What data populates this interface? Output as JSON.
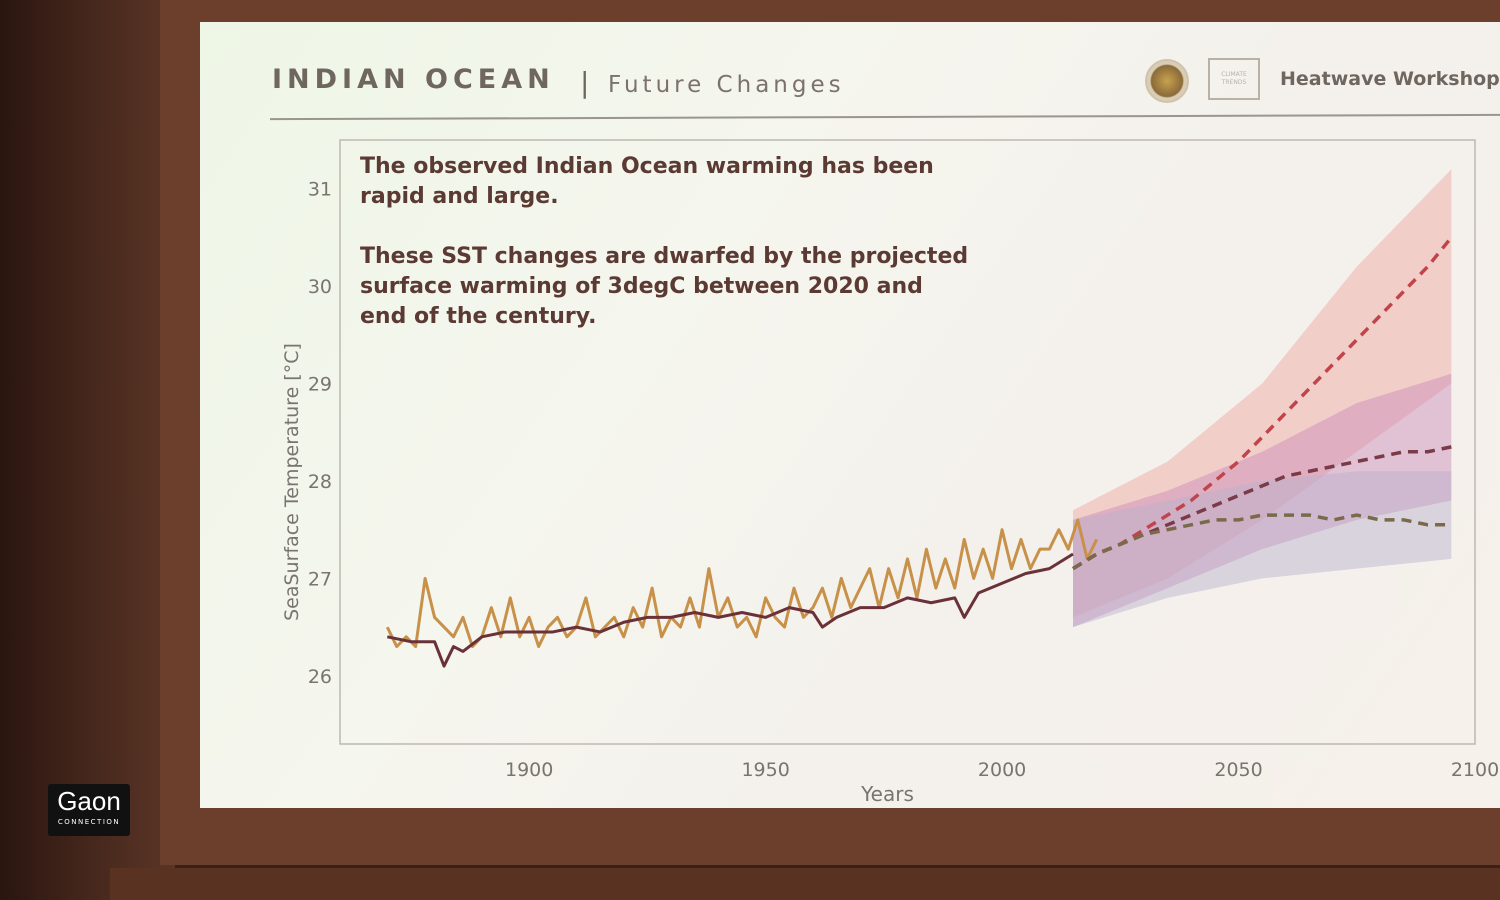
{
  "slide": {
    "title": "INDIAN OCEAN",
    "separator": "|",
    "subtitle": "Future Changes",
    "logo_text": "CLIMATE TRENDS",
    "workshop": "Heatwave Workshop",
    "caption_1": [
      "The observed Indian Ocean warming has been",
      "rapid and large."
    ],
    "caption_2": [
      "These SST changes are dwarfed by the projected",
      "surface warming of 3degC between 2020 and",
      "end of the century."
    ]
  },
  "badge": {
    "name": "Gaon",
    "sub": "CONNECTION"
  },
  "colors": {
    "observed": "#c8914a",
    "ensemble_mean": "#6a3138",
    "high": "#c0444a",
    "medium": "#7a3a48",
    "low": "#7a6a4a",
    "band_high": "#f0a4a0",
    "band_medium": "#c889b8",
    "band_low": "#b8b0cc",
    "axis_text": "#7a7470"
  },
  "chart_data": {
    "type": "line",
    "xlabel": "Years",
    "ylabel": "SeaSurface Temperature [°C]",
    "xlim": [
      1860,
      2100
    ],
    "ylim": [
      25.3,
      31.5
    ],
    "x_ticks": [
      1900,
      1950,
      2000,
      2050,
      2100
    ],
    "y_ticks": [
      26,
      27,
      28,
      29,
      30,
      31
    ],
    "grid": false,
    "series": [
      {
        "style": "solid",
        "color_key": "observed",
        "x": [
          1870,
          1872,
          1874,
          1876,
          1878,
          1880,
          1882,
          1884,
          1886,
          1888,
          1890,
          1892,
          1894,
          1896,
          1898,
          1900,
          1902,
          1904,
          1906,
          1908,
          1910,
          1912,
          1914,
          1916,
          1918,
          1920,
          1922,
          1924,
          1926,
          1928,
          1930,
          1932,
          1934,
          1936,
          1938,
          1940,
          1942,
          1944,
          1946,
          1948,
          1950,
          1952,
          1954,
          1956,
          1958,
          1960,
          1962,
          1964,
          1966,
          1968,
          1970,
          1972,
          1974,
          1976,
          1978,
          1980,
          1982,
          1984,
          1986,
          1988,
          1990,
          1992,
          1994,
          1996,
          1998,
          2000,
          2002,
          2004,
          2006,
          2008,
          2010,
          2012,
          2014,
          2016,
          2018,
          2020
        ],
        "y": [
          26.5,
          26.3,
          26.4,
          26.3,
          27.0,
          26.6,
          26.5,
          26.4,
          26.6,
          26.3,
          26.4,
          26.7,
          26.4,
          26.8,
          26.4,
          26.6,
          26.3,
          26.5,
          26.6,
          26.4,
          26.5,
          26.8,
          26.4,
          26.5,
          26.6,
          26.4,
          26.7,
          26.5,
          26.9,
          26.4,
          26.6,
          26.5,
          26.8,
          26.5,
          27.1,
          26.6,
          26.8,
          26.5,
          26.6,
          26.4,
          26.8,
          26.6,
          26.5,
          26.9,
          26.6,
          26.7,
          26.9,
          26.6,
          27.0,
          26.7,
          26.9,
          27.1,
          26.7,
          27.1,
          26.8,
          27.2,
          26.8,
          27.3,
          26.9,
          27.2,
          26.9,
          27.4,
          27.0,
          27.3,
          27.0,
          27.5,
          27.1,
          27.4,
          27.1,
          27.3,
          27.3,
          27.5,
          27.3,
          27.6,
          27.2,
          27.4
        ]
      },
      {
        "style": "solid",
        "color_key": "ensemble_mean",
        "x": [
          1870,
          1875,
          1880,
          1882,
          1884,
          1886,
          1890,
          1895,
          1900,
          1905,
          1910,
          1915,
          1920,
          1925,
          1930,
          1935,
          1940,
          1945,
          1950,
          1955,
          1960,
          1962,
          1965,
          1970,
          1975,
          1980,
          1985,
          1990,
          1992,
          1995,
          2000,
          2005,
          2010,
          2015
        ],
        "y": [
          26.4,
          26.35,
          26.35,
          26.1,
          26.3,
          26.25,
          26.4,
          26.45,
          26.45,
          26.45,
          26.5,
          26.45,
          26.55,
          26.6,
          26.6,
          26.65,
          26.6,
          26.65,
          26.6,
          26.7,
          26.65,
          26.5,
          26.6,
          26.7,
          26.7,
          26.8,
          26.75,
          26.8,
          26.6,
          26.85,
          26.95,
          27.05,
          27.1,
          27.25
        ]
      },
      {
        "style": "dashed",
        "color_key": "high",
        "x": [
          2015,
          2020,
          2025,
          2030,
          2035,
          2040,
          2045,
          2050,
          2055,
          2060,
          2065,
          2070,
          2075,
          2080,
          2085,
          2090,
          2095
        ],
        "y": [
          27.1,
          27.25,
          27.35,
          27.5,
          27.65,
          27.8,
          28.0,
          28.2,
          28.45,
          28.7,
          28.95,
          29.2,
          29.45,
          29.7,
          29.95,
          30.2,
          30.5
        ]
      },
      {
        "style": "dashed",
        "color_key": "medium",
        "x": [
          2015,
          2020,
          2025,
          2030,
          2035,
          2040,
          2045,
          2050,
          2055,
          2060,
          2065,
          2070,
          2075,
          2080,
          2085,
          2090,
          2095
        ],
        "y": [
          27.1,
          27.25,
          27.35,
          27.45,
          27.55,
          27.65,
          27.75,
          27.85,
          27.95,
          28.05,
          28.1,
          28.15,
          28.2,
          28.25,
          28.3,
          28.3,
          28.35
        ]
      },
      {
        "style": "dashed",
        "color_key": "low",
        "x": [
          2015,
          2020,
          2025,
          2030,
          2035,
          2040,
          2045,
          2050,
          2055,
          2060,
          2065,
          2070,
          2075,
          2080,
          2085,
          2090,
          2095
        ],
        "y": [
          27.1,
          27.25,
          27.35,
          27.45,
          27.5,
          27.55,
          27.6,
          27.6,
          27.65,
          27.65,
          27.65,
          27.6,
          27.65,
          27.6,
          27.6,
          27.55,
          27.55
        ]
      }
    ],
    "bands": [
      {
        "color_key": "band_high",
        "x": [
          2015,
          2035,
          2055,
          2075,
          2095
        ],
        "lower": [
          26.6,
          27.0,
          27.6,
          28.3,
          29.0
        ],
        "upper": [
          27.7,
          28.2,
          29.0,
          30.2,
          31.2
        ]
      },
      {
        "color_key": "band_medium",
        "x": [
          2015,
          2035,
          2055,
          2075,
          2095
        ],
        "lower": [
          26.5,
          26.9,
          27.3,
          27.6,
          27.8
        ],
        "upper": [
          27.6,
          27.9,
          28.3,
          28.8,
          29.1
        ]
      },
      {
        "color_key": "band_low",
        "x": [
          2015,
          2035,
          2055,
          2075,
          2095
        ],
        "lower": [
          26.5,
          26.8,
          27.0,
          27.1,
          27.2
        ],
        "upper": [
          27.6,
          27.8,
          28.0,
          28.1,
          28.1
        ]
      }
    ]
  }
}
